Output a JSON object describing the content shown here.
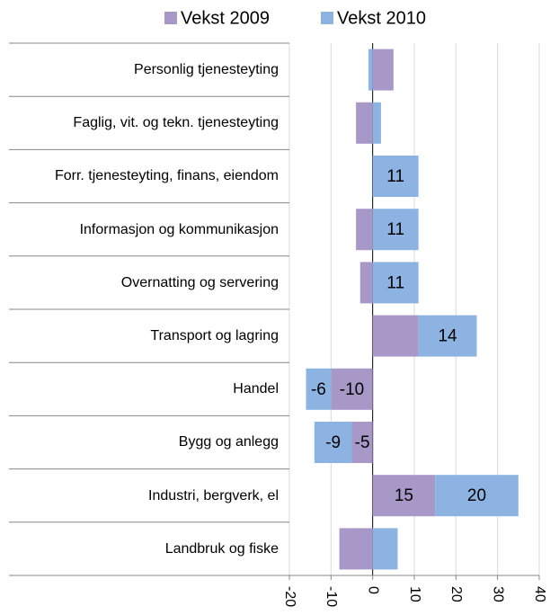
{
  "chart_data": {
    "type": "hbar_stacked",
    "categories": [
      "Personlig tjenesteyting",
      "Faglig, vit. og tekn. tjenesteyting",
      "Forr. tjenesteyting, finans, eiendom",
      "Informasjon og kommunikasjon",
      "Overnatting og servering",
      "Transport og lagring",
      "Handel",
      "Bygg og anlegg",
      "Industri, bergverk, el",
      "Landbruk og fiske"
    ],
    "series": [
      {
        "name": "Vekst 2009",
        "color": "#a898c8",
        "values": [
          5,
          -4,
          0,
          -4,
          -3,
          11,
          -10,
          -5,
          15,
          -8
        ],
        "value_labels": [
          null,
          null,
          null,
          null,
          null,
          null,
          "-10",
          "-5",
          "15",
          null
        ]
      },
      {
        "name": "Vekst 2010",
        "color": "#8db3e2",
        "values": [
          -1,
          2,
          11,
          11,
          11,
          14,
          -6,
          -9,
          20,
          6
        ],
        "value_labels": [
          null,
          null,
          "11",
          "11",
          "11",
          "14",
          "-6",
          "-9",
          "20",
          null
        ]
      }
    ],
    "xlim": [
      -20,
      40
    ],
    "xticks": [
      -20,
      -10,
      0,
      10,
      20,
      30,
      40
    ],
    "grid": true,
    "legend": "top"
  }
}
